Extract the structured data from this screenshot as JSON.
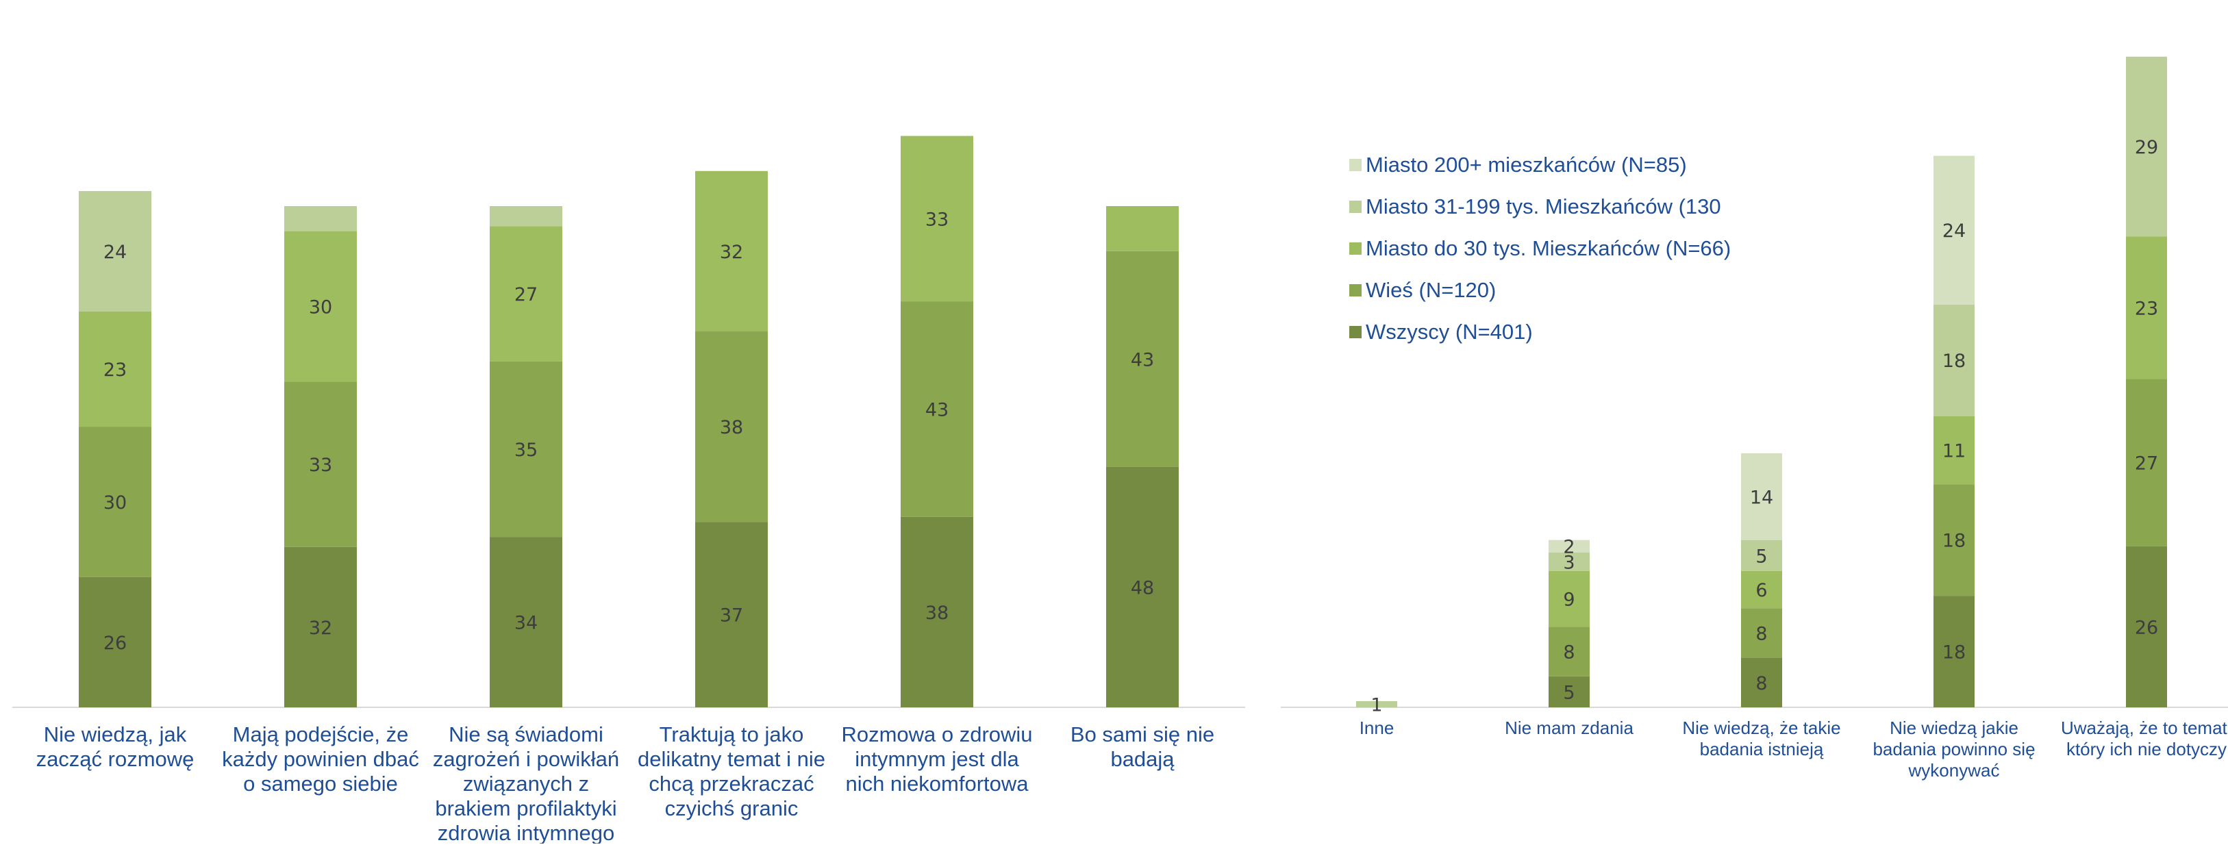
{
  "colors": {
    "stack": [
      "#758b42",
      "#8aa64f",
      "#9ebd5e",
      "#bccf98",
      "#d4e0c0"
    ],
    "axis": "#d9d9d9",
    "label_text": "#1f4e96",
    "value_text": "#3d3d3d"
  },
  "legend": [
    "Miasto 200+ mieszkańców (N=85)",
    "Miasto 31-199 tys. Mieszkańców (130",
    "Miasto do 30 tys. Mieszkańców (N=66)",
    "Wieś (N=120)",
    "Wszyscy (N=401)"
  ],
  "chart_data": [
    {
      "type": "bar",
      "stacked": true,
      "title": "",
      "xlabel": "",
      "ylabel": "",
      "grid": false,
      "categories": [
        [
          "Nie wiedzą, jak",
          "zacząć rozmowę"
        ],
        [
          "Mają podejście, że",
          "każdy powinien dbać",
          "o samego siebie"
        ],
        [
          "Nie są świadomi",
          "zagrożeń i powikłań",
          "związanych z",
          "brakiem profilaktyki",
          "zdrowia intymnego"
        ],
        [
          "Traktują to jako",
          "delikatny temat i nie",
          "chcą przekraczać",
          "czyichś granic"
        ],
        [
          "Rozmowa o zdrowiu",
          "intymnym jest dla",
          "nich niekomfortowa"
        ],
        [
          "Bo sami się nie",
          "badają"
        ]
      ],
      "series": [
        {
          "values": [
            26,
            32,
            34,
            37,
            38,
            48
          ]
        },
        {
          "values": [
            30,
            33,
            35,
            38,
            43,
            43
          ]
        },
        {
          "values": [
            23,
            30,
            27,
            32,
            33,
            9
          ]
        },
        {
          "values": [
            24,
            5,
            4,
            0,
            0,
            0
          ]
        }
      ],
      "value_labels": [
        [
          "26",
          "32",
          "34",
          "37",
          "38",
          "48"
        ],
        [
          "30",
          "33",
          "35",
          "38",
          "43",
          "43"
        ],
        [
          "23",
          "30",
          "27",
          "32",
          "33",
          ""
        ],
        [
          "24",
          "",
          "",
          "",
          "",
          ""
        ]
      ]
    },
    {
      "type": "bar",
      "stacked": true,
      "title": "",
      "xlabel": "",
      "ylabel": "",
      "grid": false,
      "legend_position": "top-left",
      "categories": [
        [
          "Inne"
        ],
        [
          "Nie mam zdania"
        ],
        [
          "Nie wiedzą, że takie",
          "badania istnieją"
        ],
        [
          "Nie wiedzą jakie",
          "badania powinno się",
          "wykonywać"
        ],
        [
          "Uważają, że to temat,",
          "który ich nie dotyczy"
        ]
      ],
      "series": [
        {
          "name": "Wszyscy (N=401)",
          "values": [
            0,
            5,
            8,
            18,
            26
          ]
        },
        {
          "name": "Wieś (N=120)",
          "values": [
            0,
            8,
            8,
            18,
            27
          ]
        },
        {
          "name": "Miasto do 30 tys. Mieszkańców (N=66)",
          "values": [
            0,
            9,
            6,
            11,
            23
          ]
        },
        {
          "name": "Miasto 31-199 tys. Mieszkańców (130",
          "values": [
            1,
            3,
            5,
            18,
            29
          ]
        },
        {
          "name": "Miasto 200+ mieszkańców (N=85)",
          "values": [
            0,
            2,
            14,
            24,
            0
          ]
        }
      ],
      "value_labels": [
        [
          "",
          "5",
          "8",
          "18",
          "26"
        ],
        [
          "",
          "8",
          "8",
          "18",
          "27"
        ],
        [
          "",
          "9",
          "6",
          "11",
          "23"
        ],
        [
          "1",
          "3",
          "5",
          "18",
          "29"
        ],
        [
          "",
          "2",
          "14",
          "24",
          ""
        ]
      ]
    }
  ]
}
